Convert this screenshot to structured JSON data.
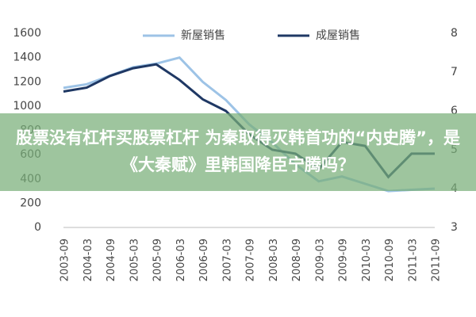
{
  "chart_data": {
    "type": "line",
    "annotation": "股票没有杠杆买股票杠杆 为秦取得灭韩首功的“内史腾”，是《大秦赋》里韩国降臣宁腾吗？",
    "categories": [
      "2003-09",
      "2004-03",
      "2004-09",
      "2005-03",
      "2005-09",
      "2006-03",
      "2006-09",
      "2007-03",
      "2007-09",
      "2008-03",
      "2008-09",
      "2009-03",
      "2009-09",
      "2010-03",
      "2010-09",
      "2011-03",
      "2011-09"
    ],
    "series": [
      {
        "name": "新屋销售",
        "color": "#9dc3e6",
        "values": [
          1150,
          1180,
          1250,
          1320,
          1350,
          1400,
          1200,
          1050,
          850,
          700,
          520,
          380,
          420,
          360,
          300,
          310,
          320
        ]
      },
      {
        "name": "成屋销售",
        "color": "#1f3864",
        "axis": "y2",
        "values": [
          6.5,
          6.6,
          6.9,
          7.1,
          7.2,
          6.8,
          6.3,
          6.0,
          5.4,
          5.0,
          4.9,
          4.5,
          5.2,
          5.1,
          4.3,
          4.9,
          4.9
        ]
      }
    ],
    "ylim": [
      0,
      1600
    ],
    "yticks": [
      0,
      200,
      400,
      600,
      800,
      1000,
      1200,
      1400,
      1600
    ],
    "y2lim": [
      3,
      8
    ],
    "y2ticks": [
      3,
      4,
      5,
      6,
      7,
      8
    ]
  }
}
